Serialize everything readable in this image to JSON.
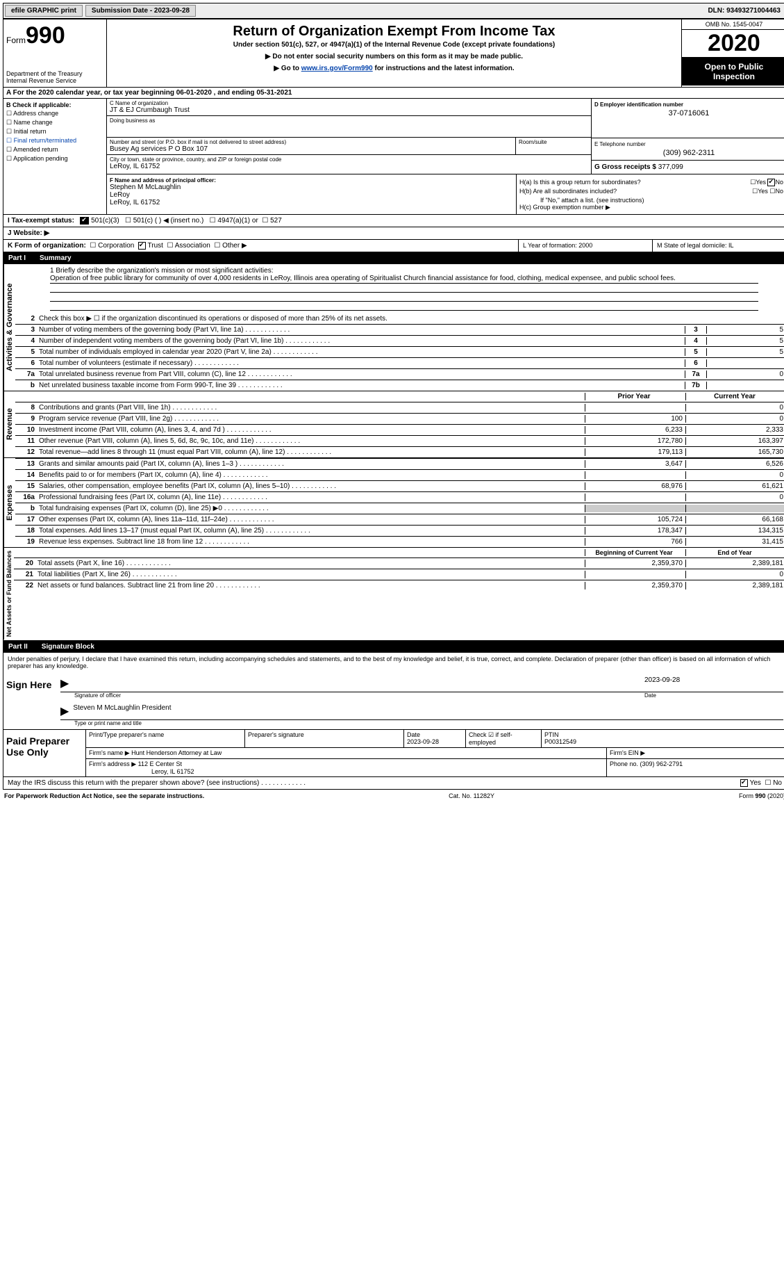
{
  "topbar": {
    "efile": "efile GRAPHIC print",
    "submission_label": "Submission Date - ",
    "submission_date": "2023-09-28",
    "dln_label": "DLN: ",
    "dln": "93493271004463"
  },
  "header": {
    "form_label": "Form",
    "form_num": "990",
    "dept": "Department of the Treasury\nInternal Revenue Service",
    "title": "Return of Organization Exempt From Income Tax",
    "subtitle": "Under section 501(c), 527, or 4947(a)(1) of the Internal Revenue Code (except private foundations)",
    "note1": "▶ Do not enter social security numbers on this form as it may be made public.",
    "note2_pre": "▶ Go to ",
    "note2_link": "www.irs.gov/Form990",
    "note2_post": " for instructions and the latest information.",
    "omb": "OMB No. 1545-0047",
    "year": "2020",
    "inspection": "Open to Public Inspection"
  },
  "rowA": "A For the 2020 calendar year, or tax year beginning 06-01-2020    , and ending 05-31-2021",
  "colB": {
    "header": "B Check if applicable:",
    "items": [
      "Address change",
      "Name change",
      "Initial return",
      "Final return/terminated",
      "Amended return",
      "Application pending"
    ]
  },
  "boxC": {
    "name_label": "C Name of organization",
    "name": "JT & EJ Crumbaugh Trust",
    "dba_label": "Doing business as",
    "street_label": "Number and street (or P.O. box if mail is not delivered to street address)",
    "street": "Busey Ag services P O Box 107",
    "room_label": "Room/suite",
    "city_label": "City or town, state or province, country, and ZIP or foreign postal code",
    "city": "LeRoy, IL  61752"
  },
  "boxD": {
    "label": "D Employer identification number",
    "val": "37-0716061"
  },
  "boxE": {
    "label": "E Telephone number",
    "val": "(309) 962-2311"
  },
  "boxG": {
    "label": "G Gross receipts $ ",
    "val": "377,099"
  },
  "boxF": {
    "label": "F Name and address of principal officer:",
    "name": "Stephen M McLaughlin",
    "l1": "LeRoy",
    "l2": "LeRoy, IL  61752"
  },
  "boxH": {
    "a_label": "H(a)  Is this a group return for subordinates?",
    "a_yes": "Yes",
    "a_no": "No",
    "b_label": "H(b)  Are all subordinates included?",
    "b_note": "If \"No,\" attach a list. (see instructions)",
    "c_label": "H(c)  Group exemption number ▶"
  },
  "rowI": {
    "label": "I    Tax-exempt status:",
    "o1": "501(c)(3)",
    "o2": "501(c) (  ) ◀ (insert no.)",
    "o3": "4947(a)(1) or",
    "o4": "527"
  },
  "rowJ": "J    Website: ▶",
  "rowK": {
    "label": "K Form of organization:",
    "o1": "Corporation",
    "o2": "Trust",
    "o3": "Association",
    "o4": "Other ▶"
  },
  "rowL": "L Year of formation: 2000",
  "rowM": "M State of legal domicile: IL",
  "part1": {
    "num": "Part I",
    "title": "Summary"
  },
  "mission": {
    "label": "1   Briefly describe the organization's mission or most significant activities:",
    "text": "Operation of free public library for community of over 4,000 residents in LeRoy, Illinois area operating of Spiritualist Church financial assistance for food, clothing, medical expensee, and public school fees."
  },
  "line2": "Check this box ▶ ☐  if the organization discontinued its operations or disposed of more than 25% of its net assets.",
  "gov_lines": [
    {
      "n": "3",
      "t": "Number of voting members of the governing body (Part VI, line 1a)",
      "box": "3",
      "v": "5"
    },
    {
      "n": "4",
      "t": "Number of independent voting members of the governing body (Part VI, line 1b)",
      "box": "4",
      "v": "5"
    },
    {
      "n": "5",
      "t": "Total number of individuals employed in calendar year 2020 (Part V, line 2a)",
      "box": "5",
      "v": "5"
    },
    {
      "n": "6",
      "t": "Total number of volunteers (estimate if necessary)",
      "box": "6",
      "v": ""
    },
    {
      "n": "7a",
      "t": "Total unrelated business revenue from Part VIII, column (C), line 12",
      "box": "7a",
      "v": "0"
    },
    {
      "n": "b",
      "t": "Net unrelated business taxable income from Form 990-T, line 39",
      "box": "7b",
      "v": ""
    }
  ],
  "col_headers": {
    "prior": "Prior Year",
    "current": "Current Year"
  },
  "revenue_lines": [
    {
      "n": "8",
      "t": "Contributions and grants (Part VIII, line 1h)",
      "p": "",
      "c": "0"
    },
    {
      "n": "9",
      "t": "Program service revenue (Part VIII, line 2g)",
      "p": "100",
      "c": "0"
    },
    {
      "n": "10",
      "t": "Investment income (Part VIII, column (A), lines 3, 4, and 7d )",
      "p": "6,233",
      "c": "2,333"
    },
    {
      "n": "11",
      "t": "Other revenue (Part VIII, column (A), lines 5, 6d, 8c, 9c, 10c, and 11e)",
      "p": "172,780",
      "c": "163,397"
    },
    {
      "n": "12",
      "t": "Total revenue—add lines 8 through 11 (must equal Part VIII, column (A), line 12)",
      "p": "179,113",
      "c": "165,730"
    }
  ],
  "expense_lines": [
    {
      "n": "13",
      "t": "Grants and similar amounts paid (Part IX, column (A), lines 1–3 )",
      "p": "3,647",
      "c": "6,526"
    },
    {
      "n": "14",
      "t": "Benefits paid to or for members (Part IX, column (A), line 4)",
      "p": "",
      "c": "0"
    },
    {
      "n": "15",
      "t": "Salaries, other compensation, employee benefits (Part IX, column (A), lines 5–10)",
      "p": "68,976",
      "c": "61,621"
    },
    {
      "n": "16a",
      "t": "Professional fundraising fees (Part IX, column (A), line 11e)",
      "p": "",
      "c": "0"
    },
    {
      "n": "b",
      "t": "Total fundraising expenses (Part IX, column (D), line 25) ▶0",
      "p": "SHADED",
      "c": "SHADED"
    },
    {
      "n": "17",
      "t": "Other expenses (Part IX, column (A), lines 11a–11d, 11f–24e)",
      "p": "105,724",
      "c": "66,168"
    },
    {
      "n": "18",
      "t": "Total expenses. Add lines 13–17 (must equal Part IX, column (A), line 25)",
      "p": "178,347",
      "c": "134,315"
    },
    {
      "n": "19",
      "t": "Revenue less expenses. Subtract line 18 from line 12",
      "p": "766",
      "c": "31,415"
    }
  ],
  "na_headers": {
    "begin": "Beginning of Current Year",
    "end": "End of Year"
  },
  "na_lines": [
    {
      "n": "20",
      "t": "Total assets (Part X, line 16)",
      "p": "2,359,370",
      "c": "2,389,181"
    },
    {
      "n": "21",
      "t": "Total liabilities (Part X, line 26)",
      "p": "",
      "c": "0"
    },
    {
      "n": "22",
      "t": "Net assets or fund balances. Subtract line 21 from line 20",
      "p": "2,359,370",
      "c": "2,389,181"
    }
  ],
  "vert": {
    "gov": "Activities & Governance",
    "rev": "Revenue",
    "exp": "Expenses",
    "na": "Net Assets or Fund Balances"
  },
  "part2": {
    "num": "Part II",
    "title": "Signature Block"
  },
  "sig": {
    "penalty": "Under penalties of perjury, I declare that I have examined this return, including accompanying schedules and statements, and to the best of my knowledge and belief, it is true, correct, and complete. Declaration of preparer (other than officer) is based on all information of which preparer has any knowledge.",
    "sign_here": "Sign Here",
    "sig_officer": "Signature of officer",
    "date": "Date",
    "date_val": "2023-09-28",
    "name": "Steven M McLaughlin  President",
    "name_label": "Type or print name and title"
  },
  "preparer": {
    "label": "Paid Preparer Use Only",
    "h1": "Print/Type preparer's name",
    "h2": "Preparer's signature",
    "h3_label": "Date",
    "h3_val": "2023-09-28",
    "h4_label": "Check ☑ if self-employed",
    "h5_label": "PTIN",
    "h5_val": "P00312549",
    "firm_name_label": "Firm's name    ▶ ",
    "firm_name": "Hunt Henderson Attorney at Law",
    "firm_ein_label": "Firm's EIN ▶",
    "firm_addr_label": "Firm's address ▶ ",
    "firm_addr": "112 E Center St",
    "firm_addr2": "Leroy, IL  61752",
    "phone_label": "Phone no. ",
    "phone": "(309) 962-2791"
  },
  "discuss": {
    "text": "May the IRS discuss this return with the preparer shown above? (see instructions)",
    "yes": "Yes",
    "no": "No"
  },
  "footer": {
    "left": "For Paperwork Reduction Act Notice, see the separate instructions.",
    "mid": "Cat. No. 11282Y",
    "right": "Form 990 (2020)"
  }
}
